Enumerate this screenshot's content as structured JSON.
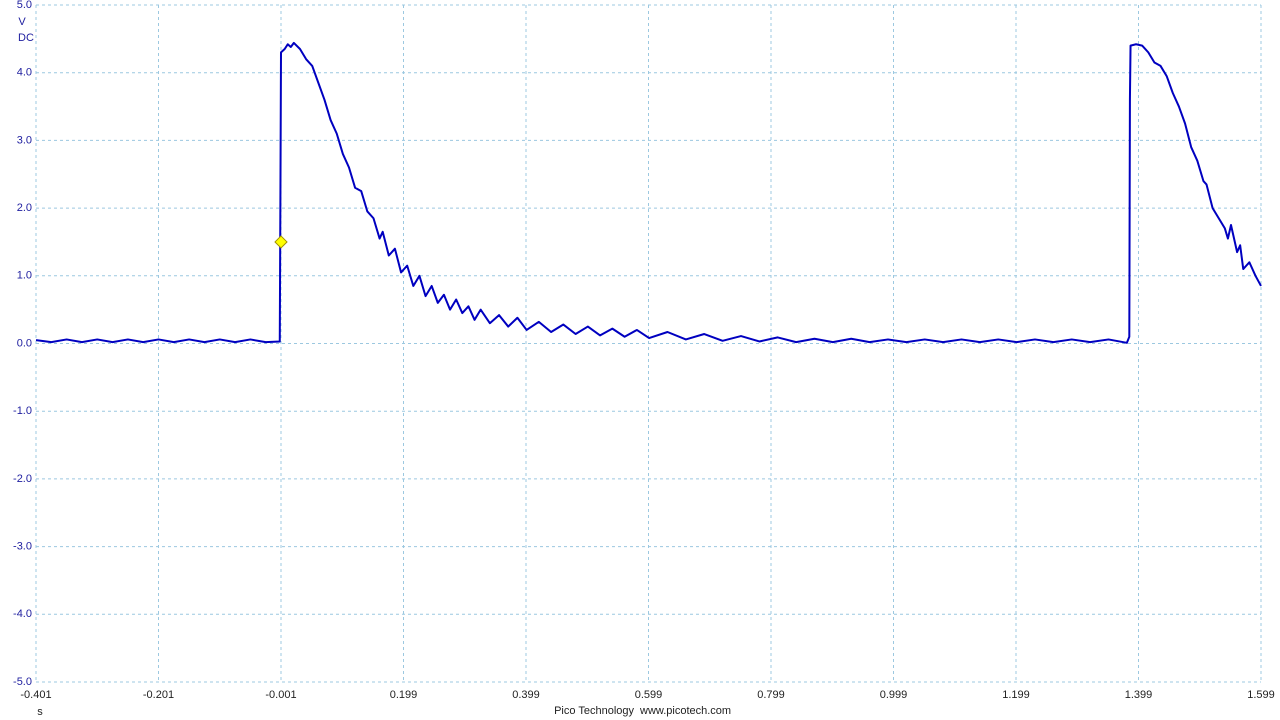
{
  "chart_data": {
    "type": "line",
    "y_label": "V",
    "y_coupling": "DC",
    "x_label": "s",
    "footer": "Pico Technology",
    "website": "www.picotech.com",
    "color": "#0000c0",
    "grid": true,
    "xlim": [
      -0.401,
      1.599
    ],
    "xticks": [
      -0.401,
      -0.201,
      -0.001,
      0.199,
      0.399,
      0.599,
      0.799,
      0.999,
      1.199,
      1.399,
      1.599
    ],
    "ylim": [
      -5,
      5
    ],
    "yticks": [
      {
        "value": 5,
        "label": "5.0"
      },
      {
        "value": 4,
        "label": "4.0"
      },
      {
        "value": 3,
        "label": "3.0"
      },
      {
        "value": 2,
        "label": "2.0"
      },
      {
        "value": 1,
        "label": "1.0"
      },
      {
        "value": 0,
        "label": "0.0"
      },
      {
        "value": -1,
        "label": "-1.0"
      },
      {
        "value": -2,
        "label": "-2.0"
      },
      {
        "value": -3,
        "label": "-3.0"
      },
      {
        "value": -4,
        "label": "-4.0"
      },
      {
        "value": -5,
        "label": "-5.0"
      }
    ],
    "trigger": {
      "x": -0.001,
      "y": 1.5,
      "color": "#ffff00"
    },
    "x": [
      -0.401,
      -0.376,
      -0.351,
      -0.326,
      -0.301,
      -0.276,
      -0.251,
      -0.226,
      -0.201,
      -0.176,
      -0.151,
      -0.126,
      -0.101,
      -0.076,
      -0.051,
      -0.026,
      -0.003,
      -0.002,
      -0.001,
      0.005,
      0.01,
      0.015,
      0.02,
      0.03,
      0.04,
      0.05,
      0.06,
      0.07,
      0.08,
      0.09,
      0.1,
      0.11,
      0.12,
      0.13,
      0.14,
      0.15,
      0.16,
      0.165,
      0.175,
      0.185,
      0.195,
      0.205,
      0.215,
      0.225,
      0.235,
      0.245,
      0.255,
      0.265,
      0.275,
      0.285,
      0.295,
      0.305,
      0.315,
      0.325,
      0.34,
      0.355,
      0.37,
      0.385,
      0.4,
      0.42,
      0.44,
      0.46,
      0.48,
      0.5,
      0.52,
      0.54,
      0.56,
      0.58,
      0.6,
      0.63,
      0.66,
      0.69,
      0.72,
      0.75,
      0.78,
      0.81,
      0.84,
      0.87,
      0.9,
      0.93,
      0.96,
      0.99,
      1.02,
      1.05,
      1.08,
      1.11,
      1.14,
      1.17,
      1.2,
      1.23,
      1.26,
      1.29,
      1.32,
      1.35,
      1.38,
      1.384,
      1.385,
      1.386,
      1.395,
      1.405,
      1.415,
      1.425,
      1.435,
      1.445,
      1.455,
      1.465,
      1.475,
      1.485,
      1.495,
      1.505,
      1.51,
      1.52,
      1.53,
      1.54,
      1.545,
      1.55,
      1.56,
      1.565,
      1.57,
      1.58,
      1.59,
      1.599
    ],
    "values": [
      0.05,
      0.02,
      0.06,
      0.02,
      0.06,
      0.02,
      0.06,
      0.02,
      0.06,
      0.02,
      0.06,
      0.02,
      0.06,
      0.02,
      0.06,
      0.02,
      0.03,
      2.1,
      4.3,
      4.35,
      4.42,
      4.38,
      4.44,
      4.35,
      4.2,
      4.1,
      3.85,
      3.6,
      3.3,
      3.1,
      2.8,
      2.6,
      2.3,
      2.25,
      1.95,
      1.85,
      1.55,
      1.65,
      1.3,
      1.4,
      1.05,
      1.15,
      0.85,
      1.0,
      0.7,
      0.85,
      0.6,
      0.72,
      0.5,
      0.65,
      0.45,
      0.55,
      0.35,
      0.5,
      0.3,
      0.42,
      0.25,
      0.38,
      0.2,
      0.32,
      0.17,
      0.28,
      0.14,
      0.25,
      0.12,
      0.22,
      0.1,
      0.2,
      0.08,
      0.17,
      0.06,
      0.14,
      0.04,
      0.11,
      0.03,
      0.09,
      0.02,
      0.07,
      0.02,
      0.07,
      0.02,
      0.06,
      0.02,
      0.06,
      0.02,
      0.06,
      0.02,
      0.06,
      0.02,
      0.06,
      0.02,
      0.06,
      0.02,
      0.06,
      0.01,
      0.1,
      3.6,
      4.4,
      4.42,
      4.4,
      4.3,
      4.15,
      4.1,
      3.95,
      3.7,
      3.5,
      3.25,
      2.9,
      2.7,
      2.4,
      2.35,
      2.0,
      1.85,
      1.7,
      1.55,
      1.75,
      1.35,
      1.45,
      1.1,
      1.2,
      1.0,
      0.85
    ]
  }
}
